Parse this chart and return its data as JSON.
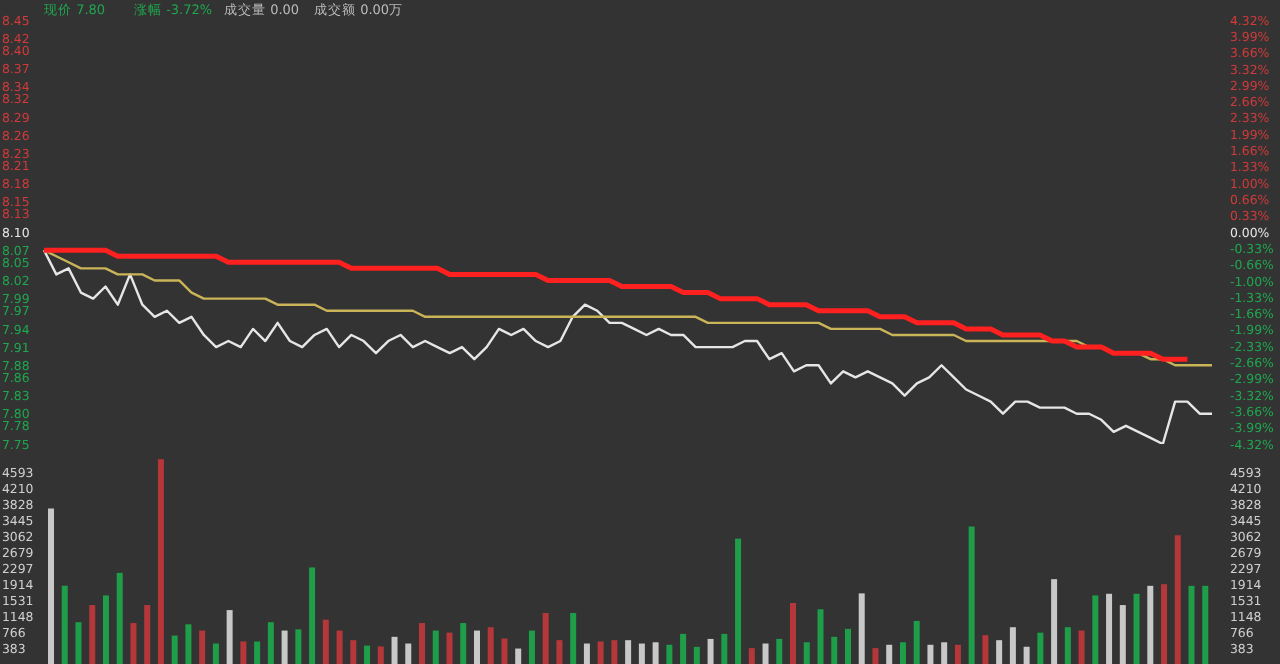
{
  "chart_data": [
    {
      "type": "line",
      "annotations": [
        "现价 7.80",
        "涨幅 -3.72%",
        "成交量 0.00",
        "成交额 0.00万"
      ],
      "categories": [
        null,
        null,
        null,
        null,
        null,
        null,
        null,
        null,
        null,
        null,
        null,
        null,
        null,
        null,
        null,
        null,
        null,
        null,
        null,
        null,
        null,
        null,
        null,
        null,
        null,
        null,
        null,
        null,
        null,
        null,
        null,
        null,
        null,
        null,
        null,
        null,
        null,
        null,
        null,
        null,
        null,
        null,
        null,
        null,
        null,
        null,
        null,
        null,
        null,
        null,
        null,
        null,
        null,
        null,
        null,
        null,
        null,
        null,
        null,
        null,
        null,
        null,
        null,
        null,
        null,
        null,
        null,
        null,
        null,
        null,
        null,
        null,
        null,
        null,
        null,
        null,
        null,
        null,
        null,
        null,
        null,
        null,
        null,
        null,
        null,
        null,
        null,
        null,
        null,
        null,
        null,
        null,
        null,
        null,
        null,
        null
      ],
      "ylim": [
        7.75,
        8.45
      ],
      "yticks": [
        8.45,
        8.42,
        {
          "value": 8.4,
          "label": "8.40"
        },
        8.37,
        8.34,
        8.32,
        8.29,
        8.26,
        8.23,
        8.21,
        8.18,
        8.15,
        8.13,
        {
          "value": 8.1,
          "label": "8.10"
        },
        8.07,
        8.05,
        8.02,
        7.99,
        7.97,
        7.94,
        7.91,
        7.88,
        7.86,
        7.83,
        {
          "value": 7.8,
          "label": "7.80"
        },
        7.78,
        7.75
      ],
      "y2lim": [
        -4.32,
        4.32
      ],
      "y2ticks": [
        {
          "value": 4.32,
          "label": "4.32%"
        },
        {
          "value": 3.99,
          "label": "3.99%"
        },
        {
          "value": 3.66,
          "label": "3.66%"
        },
        {
          "value": 3.32,
          "label": "3.32%"
        },
        {
          "value": 2.99,
          "label": "2.99%"
        },
        {
          "value": 2.66,
          "label": "2.66%"
        },
        {
          "value": 2.33,
          "label": "2.33%"
        },
        {
          "value": 1.99,
          "label": "1.99%"
        },
        {
          "value": 1.66,
          "label": "1.66%"
        },
        {
          "value": 1.33,
          "label": "1.33%"
        },
        {
          "value": 1.0,
          "label": "1.00%"
        },
        {
          "value": 0.66,
          "label": "0.66%"
        },
        {
          "value": 0.33,
          "label": "0.33%"
        },
        {
          "value": 0,
          "label": "0.00%"
        },
        {
          "value": -0.33,
          "label": "-0.33%"
        },
        {
          "value": -0.66,
          "label": "-0.66%"
        },
        {
          "value": -1.0,
          "label": "-1.00%"
        },
        {
          "value": -1.33,
          "label": "-1.33%"
        },
        {
          "value": -1.66,
          "label": "-1.66%"
        },
        {
          "value": -1.99,
          "label": "-1.99%"
        },
        {
          "value": -2.33,
          "label": "-2.33%"
        },
        {
          "value": -2.66,
          "label": "-2.66%"
        },
        {
          "value": -2.99,
          "label": "-2.99%"
        },
        {
          "value": -3.32,
          "label": "-3.32%"
        },
        {
          "value": -3.66,
          "label": "-3.66%"
        },
        {
          "value": -3.99,
          "label": "-3.99%"
        },
        {
          "value": -4.32,
          "label": "-4.32%"
        }
      ],
      "tick_labels": "y",
      "marker": "none",
      "series": [
        {
          "color": "#e6e6e6",
          "values": [
            8.07,
            8.03,
            8.04,
            8.0,
            7.99,
            8.01,
            7.98,
            8.03,
            7.98,
            7.96,
            7.97,
            7.95,
            7.96,
            7.93,
            7.91,
            7.92,
            7.91,
            7.94,
            7.92,
            7.95,
            7.92,
            7.91,
            7.93,
            7.94,
            7.91,
            7.93,
            7.92,
            7.9,
            7.92,
            7.93,
            7.91,
            7.92,
            7.91,
            7.9,
            7.91,
            7.89,
            7.91,
            7.94,
            7.93,
            7.94,
            7.92,
            7.91,
            7.92,
            7.96,
            7.98,
            7.97,
            7.95,
            7.95,
            7.94,
            7.93,
            7.94,
            7.93,
            7.93,
            7.91,
            7.91,
            7.91,
            7.91,
            7.92,
            7.92,
            7.89,
            7.9,
            7.87,
            7.88,
            7.88,
            7.85,
            7.87,
            7.86,
            7.87,
            7.86,
            7.85,
            7.83,
            7.85,
            7.86,
            7.88,
            7.86,
            7.84,
            7.83,
            7.82,
            7.8,
            7.82,
            7.82,
            7.81,
            7.81,
            7.81,
            7.8,
            7.8,
            7.79,
            7.77,
            7.78,
            7.77,
            7.76,
            7.75,
            7.82,
            7.82,
            7.8,
            7.8
          ]
        },
        {
          "color": "#c9b458",
          "values": [
            8.07,
            8.06,
            8.05,
            8.04,
            8.04,
            8.04,
            8.03,
            8.03,
            8.03,
            8.02,
            8.02,
            8.02,
            8.0,
            7.99,
            7.99,
            7.99,
            7.99,
            7.99,
            7.99,
            7.98,
            7.98,
            7.98,
            7.98,
            7.97,
            7.97,
            7.97,
            7.97,
            7.97,
            7.97,
            7.97,
            7.97,
            7.96,
            7.96,
            7.96,
            7.96,
            7.96,
            7.96,
            7.96,
            7.96,
            7.96,
            7.96,
            7.96,
            7.96,
            7.96,
            7.96,
            7.96,
            7.96,
            7.96,
            7.96,
            7.96,
            7.96,
            7.96,
            7.96,
            7.96,
            7.95,
            7.95,
            7.95,
            7.95,
            7.95,
            7.95,
            7.95,
            7.95,
            7.95,
            7.95,
            7.94,
            7.94,
            7.94,
            7.94,
            7.94,
            7.93,
            7.93,
            7.93,
            7.93,
            7.93,
            7.93,
            7.92,
            7.92,
            7.92,
            7.92,
            7.92,
            7.92,
            7.92,
            7.92,
            7.92,
            7.92,
            7.91,
            7.91,
            7.9,
            7.9,
            7.9,
            7.89,
            7.89,
            7.88,
            7.88,
            7.88,
            7.88
          ]
        },
        {
          "color": "#ff2020",
          "values": [
            8.07,
            8.07,
            8.07,
            8.07,
            8.07,
            8.07,
            8.06,
            8.06,
            8.06,
            8.06,
            8.06,
            8.06,
            8.06,
            8.06,
            8.06,
            8.05,
            8.05,
            8.05,
            8.05,
            8.05,
            8.05,
            8.05,
            8.05,
            8.05,
            8.05,
            8.04,
            8.04,
            8.04,
            8.04,
            8.04,
            8.04,
            8.04,
            8.04,
            8.03,
            8.03,
            8.03,
            8.03,
            8.03,
            8.03,
            8.03,
            8.03,
            8.02,
            8.02,
            8.02,
            8.02,
            8.02,
            8.02,
            8.01,
            8.01,
            8.01,
            8.01,
            8.01,
            8.0,
            8.0,
            8.0,
            7.99,
            7.99,
            7.99,
            7.99,
            7.98,
            7.98,
            7.98,
            7.98,
            7.97,
            7.97,
            7.97,
            7.97,
            7.97,
            7.96,
            7.96,
            7.96,
            7.95,
            7.95,
            7.95,
            7.95,
            7.94,
            7.94,
            7.94,
            7.93,
            7.93,
            7.93,
            7.93,
            7.92,
            7.92,
            7.91,
            7.91,
            7.91,
            7.9,
            7.9,
            7.9,
            7.9,
            7.89,
            7.89,
            7.89,
            null,
            null
          ]
        }
      ]
    },
    {
      "type": "bar",
      "ylim": [
        0,
        4976
      ],
      "yticks": [
        4593,
        4210,
        3828,
        3445,
        3062,
        2679,
        2297,
        1914,
        1531,
        1148,
        766,
        383
      ],
      "y2lim": [
        0,
        4976
      ],
      "y2ticks": [
        4593,
        4210,
        3828,
        3445,
        3062,
        2679,
        2297,
        1914,
        1531,
        1148,
        766,
        383
      ],
      "tick_labels": "y",
      "categories": [
        null,
        null,
        null,
        null,
        null,
        null,
        null,
        null,
        null,
        null,
        null,
        null,
        null,
        null,
        null,
        null,
        null,
        null,
        null,
        null,
        null,
        null,
        null,
        null,
        null,
        null,
        null,
        null,
        null,
        null,
        null,
        null,
        null,
        null,
        null,
        null,
        null,
        null,
        null,
        null,
        null,
        null,
        null,
        null,
        null,
        null,
        null,
        null,
        null,
        null,
        null,
        null,
        null,
        null,
        null,
        null,
        null,
        null,
        null,
        null,
        null,
        null,
        null,
        null,
        null,
        null,
        null,
        null,
        null,
        null,
        null,
        null,
        null,
        null,
        null,
        null,
        null,
        null,
        null,
        null,
        null,
        null,
        null,
        null,
        null
      ],
      "values": [
        3720,
        1870,
        1000,
        1410,
        1640,
        2180,
        980,
        1410,
        4900,
        680,
        950,
        800,
        490,
        1290,
        540,
        540,
        1000,
        800,
        830,
        2310,
        1060,
        800,
        570,
        440,
        420,
        650,
        490,
        980,
        800,
        750,
        980,
        800,
        880,
        610,
        370,
        800,
        1220,
        570,
        1220,
        490,
        540,
        570,
        570,
        490,
        520,
        460,
        720,
        410,
        600,
        720,
        3000,
        380,
        490,
        600,
        1460,
        520,
        1310,
        650,
        840,
        1690,
        380,
        460,
        520,
        1030,
        460,
        520,
        460,
        3290,
        690,
        570,
        880,
        410,
        750,
        2030,
        880,
        800,
        1640,
        1680,
        1410,
        1680,
        1870,
        1910,
        3080,
        1870,
        1870
      ],
      "colors": [
        "#c8c8c8",
        "#1f9e4a",
        "#1f9e4a",
        "#b5373a",
        "#1f9e4a",
        "#1f9e4a",
        "#b5373a",
        "#b5373a",
        "#b5373a",
        "#1f9e4a",
        "#1f9e4a",
        "#b5373a",
        "#1f9e4a",
        "#c8c8c8",
        "#b5373a",
        "#1f9e4a",
        "#1f9e4a",
        "#c8c8c8",
        "#1f9e4a",
        "#1f9e4a",
        "#b5373a",
        "#b5373a",
        "#b5373a",
        "#1f9e4a",
        "#b5373a",
        "#c8c8c8",
        "#c8c8c8",
        "#b5373a",
        "#1f9e4a",
        "#b5373a",
        "#1f9e4a",
        "#c8c8c8",
        "#b5373a",
        "#b5373a",
        "#c8c8c8",
        "#1f9e4a",
        "#b5373a",
        "#b5373a",
        "#1f9e4a",
        "#c8c8c8",
        "#b5373a",
        "#b5373a",
        "#c8c8c8",
        "#c8c8c8",
        "#c8c8c8",
        "#1f9e4a",
        "#1f9e4a",
        "#1f9e4a",
        "#c8c8c8",
        "#1f9e4a",
        "#1f9e4a",
        "#b5373a",
        "#c8c8c8",
        "#1f9e4a",
        "#b5373a",
        "#1f9e4a",
        "#1f9e4a",
        "#1f9e4a",
        "#1f9e4a",
        "#c8c8c8",
        "#b5373a",
        "#c8c8c8",
        "#1f9e4a",
        "#1f9e4a",
        "#c8c8c8",
        "#c8c8c8",
        "#b5373a",
        "#1f9e4a",
        "#b5373a",
        "#c8c8c8",
        "#c8c8c8",
        "#c8c8c8",
        "#1f9e4a",
        "#c8c8c8",
        "#1f9e4a",
        "#b5373a",
        "#1f9e4a",
        "#c8c8c8",
        "#c8c8c8",
        "#1f9e4a",
        "#c8c8c8",
        "#b5373a",
        "#b5373a",
        "#1f9e4a",
        "#1f9e4a"
      ]
    }
  ]
}
